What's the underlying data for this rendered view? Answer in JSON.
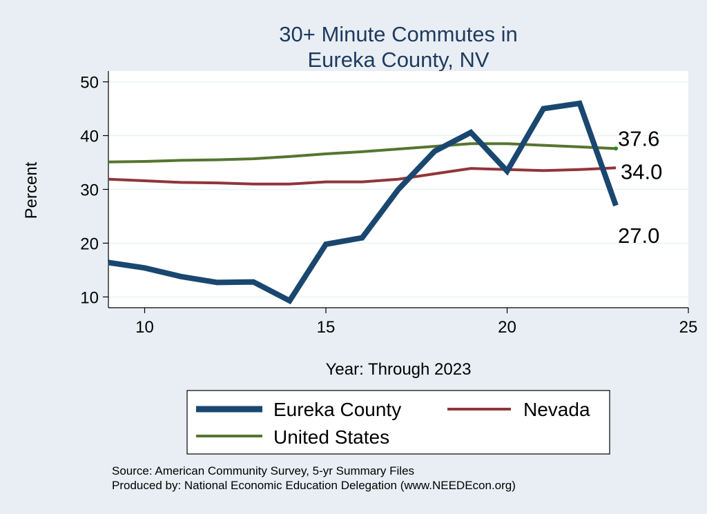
{
  "chart_data": {
    "type": "line",
    "title": [
      "30+ Minute Commutes in",
      "Eureka County, NV"
    ],
    "xlabel": "Year: Through 2023",
    "ylabel": "Percent",
    "xlim": [
      9,
      25
    ],
    "ylim": [
      8,
      52
    ],
    "xticks": [
      10,
      15,
      20,
      25
    ],
    "yticks": [
      10,
      20,
      30,
      40,
      50
    ],
    "x": [
      9,
      10,
      11,
      12,
      13,
      14,
      15,
      16,
      17,
      18,
      19,
      20,
      21,
      22,
      23
    ],
    "series": [
      {
        "name": "Eureka County",
        "color": "#1a476f",
        "values": [
          16.4,
          15.4,
          13.8,
          12.7,
          12.8,
          9.3,
          19.8,
          21.0,
          30.0,
          37.1,
          40.6,
          33.4,
          45.0,
          46.0,
          27.0
        ],
        "end_label": "27.0"
      },
      {
        "name": "Nevada",
        "color": "#90353b",
        "values": [
          31.9,
          31.6,
          31.3,
          31.2,
          31.0,
          31.0,
          31.4,
          31.4,
          31.9,
          32.9,
          33.9,
          33.7,
          33.5,
          33.7,
          34.0
        ],
        "end_label": "34.0"
      },
      {
        "name": "United States",
        "color": "#55752f",
        "values": [
          35.1,
          35.2,
          35.4,
          35.5,
          35.7,
          36.1,
          36.6,
          37.0,
          37.5,
          38.0,
          38.5,
          38.5,
          38.2,
          37.9,
          37.6
        ],
        "end_label": "37.6"
      }
    ],
    "legend": {
      "position": "bottom",
      "entries": [
        "Eureka County",
        "Nevada",
        "United States"
      ]
    },
    "notes": [
      "Source: American Community Survey, 5-yr Summary Files",
      "Produced by: National Economic Education Delegation (www.NEEDEcon.org)"
    ]
  },
  "colors": {
    "background": "#e8eef3",
    "plot_background": "#ffffff",
    "title": "#1f3a5f",
    "grid": "#eaf2f3"
  }
}
